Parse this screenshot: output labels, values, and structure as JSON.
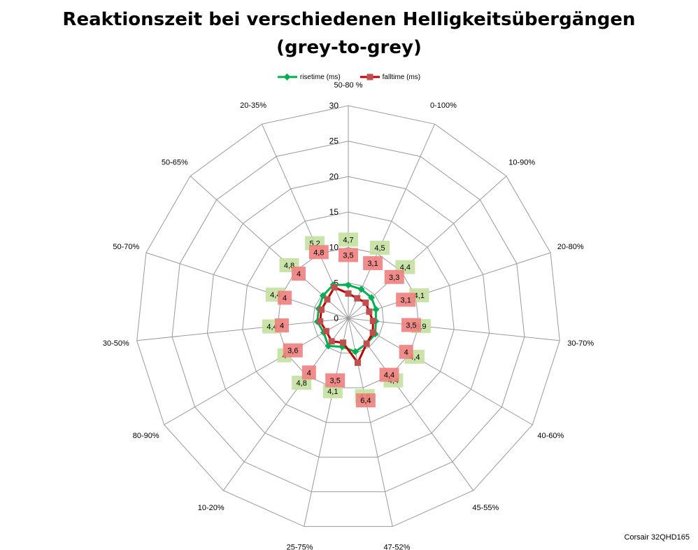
{
  "chart_data": {
    "type": "radar",
    "title_line1": "Reaktionszeit bei verschiedenen Helligkeitsübergängen",
    "title_line2": "(grey-to-grey)",
    "categories": [
      "50-80 %",
      "0-100%",
      "10-90%",
      "20-80%",
      "30-70%",
      "40-60%",
      "45-55%",
      "47-52%",
      "25-75%",
      "10-20%",
      "80-90%",
      "30-50%",
      "50-70%",
      "50-65%",
      "20-35%"
    ],
    "r_ticks": [
      "0",
      "5",
      "10",
      "15",
      "20",
      "25",
      "30"
    ],
    "rmax": 30,
    "series": [
      {
        "name": "risetime (ms)",
        "color": "#00b050",
        "label_bg": "#c4e0a0",
        "values": [
          4.7,
          4.5,
          4.4,
          4.1,
          3.9,
          4.4,
          4.4,
          4.8,
          4.1,
          4.8,
          4.0,
          4.4,
          4.4,
          4.8,
          5.2
        ]
      },
      {
        "name": "falltime (ms)",
        "color": "#c0504d",
        "label_bg": "#f08080",
        "values": [
          3.5,
          3.1,
          3.3,
          3.1,
          3.5,
          4.0,
          4.4,
          6.4,
          3.5,
          4.0,
          3.6,
          4.0,
          4.0,
          4.0,
          4.8
        ]
      }
    ],
    "data_labels": {
      "risetime": [
        "4,7",
        "4,5",
        "4,4",
        "4,1",
        "3,9",
        "4,4",
        "4,4",
        "4,8",
        "4,1",
        "4,8",
        "4",
        "4,4",
        "4,4",
        "4,8",
        "5,2"
      ],
      "falltime": [
        "3,5",
        "3,1",
        "3,3",
        "3,1",
        "3,5",
        "4",
        "4,4",
        "6,4",
        "3,5",
        "4",
        "3,6",
        "4",
        "4",
        "4",
        "4,8"
      ]
    },
    "grid": true,
    "legend_position": "top"
  },
  "footer_text": "Corsair 32QHD165"
}
